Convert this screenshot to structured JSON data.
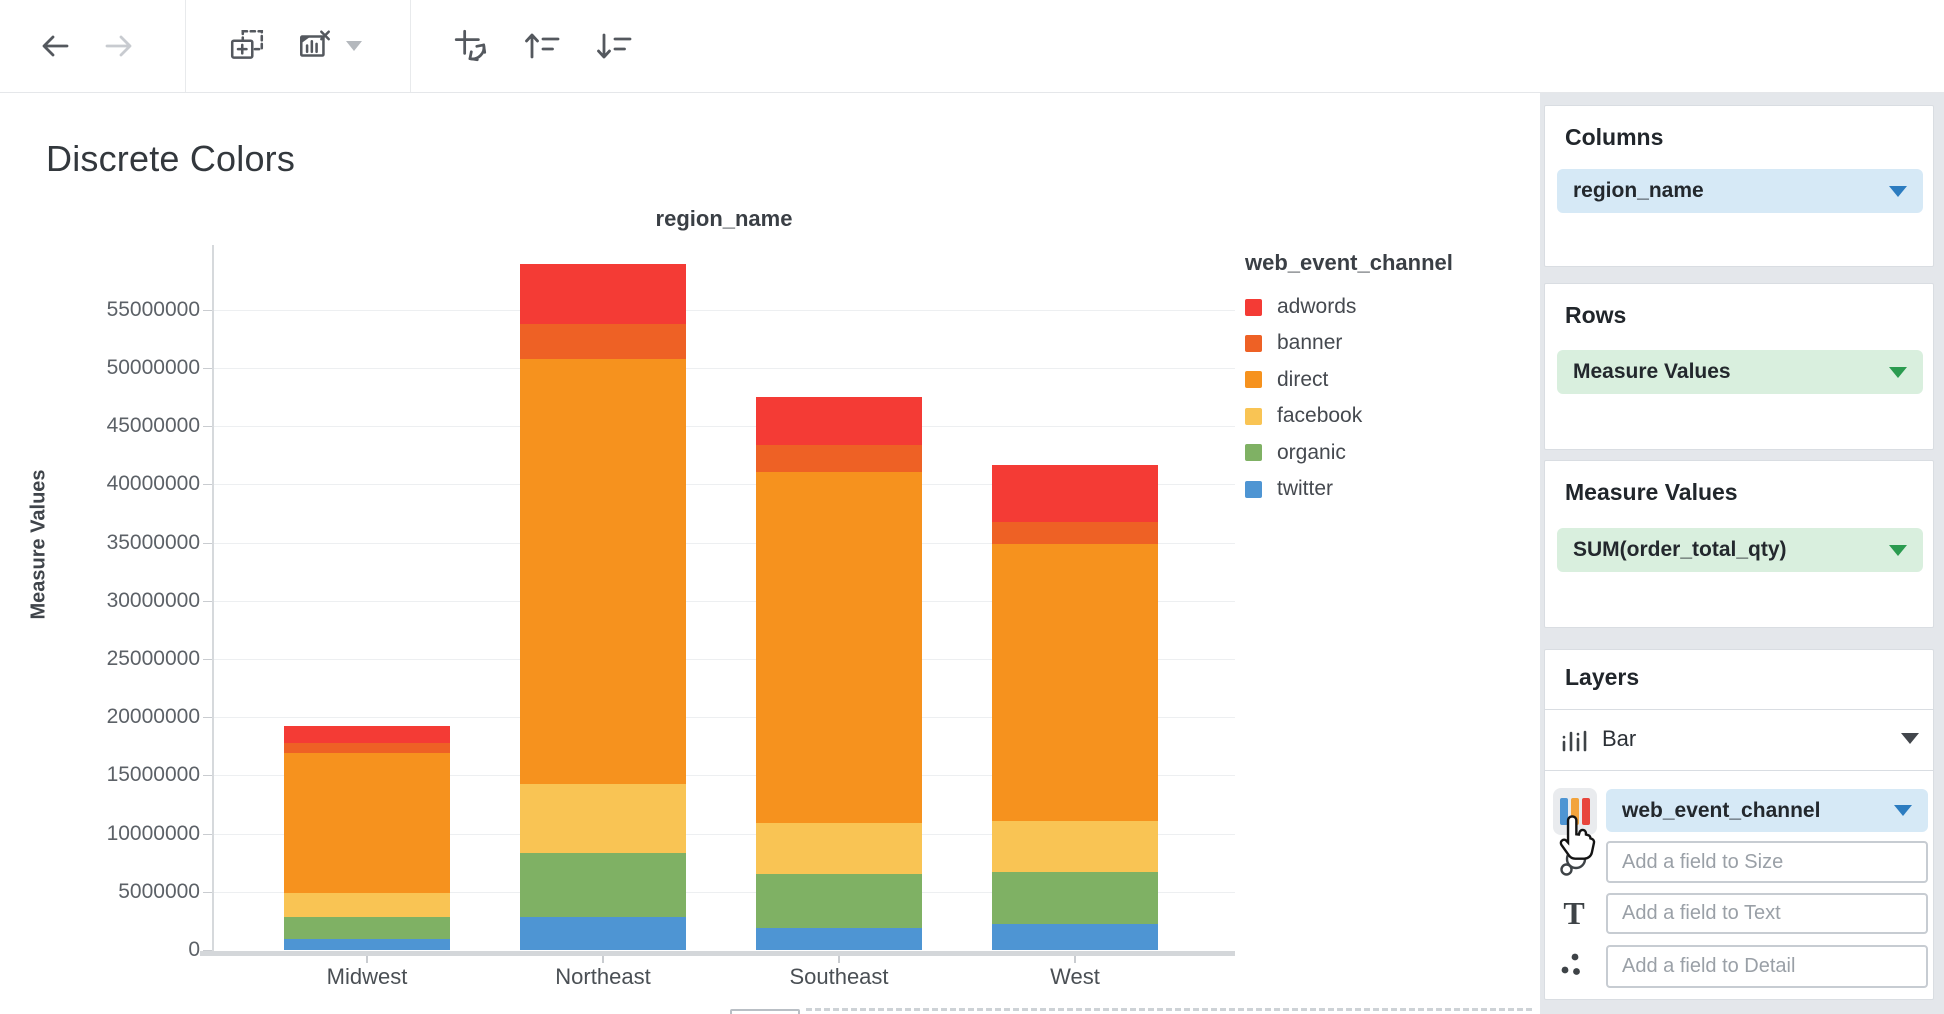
{
  "page": {
    "title": "Discrete Colors"
  },
  "toolbar": {
    "icons": [
      {
        "name": "back-arrow-icon",
        "enabled": true
      },
      {
        "name": "forward-arrow-icon",
        "enabled": false
      },
      {
        "name": "add-chart-icon",
        "enabled": true
      },
      {
        "name": "remove-chart-icon",
        "enabled": true
      },
      {
        "name": "remove-chart-menu-caret",
        "enabled": true
      },
      {
        "name": "swap-axes-icon",
        "enabled": true
      },
      {
        "name": "sort-ascending-icon",
        "enabled": true
      },
      {
        "name": "sort-descending-icon",
        "enabled": true
      }
    ]
  },
  "chart_data": {
    "type": "bar",
    "stacked": true,
    "stack_order": "bottom-to-top",
    "title": "region_name",
    "xlabel": "region_name",
    "ylabel": "Measure Values",
    "categories": [
      "Midwest",
      "Northeast",
      "Southeast",
      "West"
    ],
    "series": [
      {
        "name": "twitter",
        "color": "#4E95D3",
        "values": [
          950000,
          2850000,
          1850000,
          2250000
        ]
      },
      {
        "name": "organic",
        "color": "#7FB164",
        "values": [
          1900000,
          5500000,
          4650000,
          4450000
        ]
      },
      {
        "name": "facebook",
        "color": "#F9C454",
        "values": [
          2050000,
          5950000,
          4450000,
          4350000
        ]
      },
      {
        "name": "direct",
        "color": "#F6921E",
        "values": [
          12050000,
          36450000,
          30100000,
          23800000
        ]
      },
      {
        "name": "banner",
        "color": "#EE6125",
        "values": [
          850000,
          3050000,
          2300000,
          1900000
        ]
      },
      {
        "name": "adwords",
        "color": "#F43B35",
        "values": [
          1450000,
          5150000,
          4150000,
          4900000
        ]
      }
    ],
    "totals": [
      19250000,
      58950000,
      47500000,
      41650000
    ],
    "legend": {
      "title": "web_event_channel",
      "position": "right",
      "entries": [
        "adwords",
        "banner",
        "direct",
        "facebook",
        "organic",
        "twitter"
      ]
    },
    "ylim": [
      0,
      59000000
    ],
    "yticks": [
      0,
      5000000,
      10000000,
      15000000,
      20000000,
      25000000,
      30000000,
      35000000,
      40000000,
      45000000,
      50000000,
      55000000
    ],
    "grid": true
  },
  "sidebar": {
    "columns": {
      "label": "Columns",
      "pill": "region_name"
    },
    "rows": {
      "label": "Rows",
      "pill": "Measure Values"
    },
    "measure_values": {
      "label": "Measure Values",
      "pill": "SUM(order_total_qty)"
    },
    "layers": {
      "label": "Layers",
      "layer_type": "Bar",
      "layer_type_icon": "bar-chart-icon",
      "color_field": "web_event_channel",
      "color_icon": "color-bars-icon",
      "size_icon": "size-circles-icon",
      "text_icon": "text-T-icon",
      "detail_icon": "detail-dots-icon",
      "size_placeholder": "Add a field to Size",
      "text_placeholder": "Add a field to Text",
      "detail_placeholder": "Add a field to Detail"
    }
  },
  "colors": {
    "accent_blue": "#2C7CC0",
    "accent_green": "#2B9B50",
    "pill_blue_bg": "#D6E9F6",
    "pill_green_bg": "#D9EFDE",
    "sidebar_bg": "#E4E7EB",
    "toolbar_icon": "#54585E",
    "toolbar_icon_disabled": "#C8CBD0",
    "gridline": "#EDEFF1",
    "axis_line": "#D4D7DA"
  }
}
